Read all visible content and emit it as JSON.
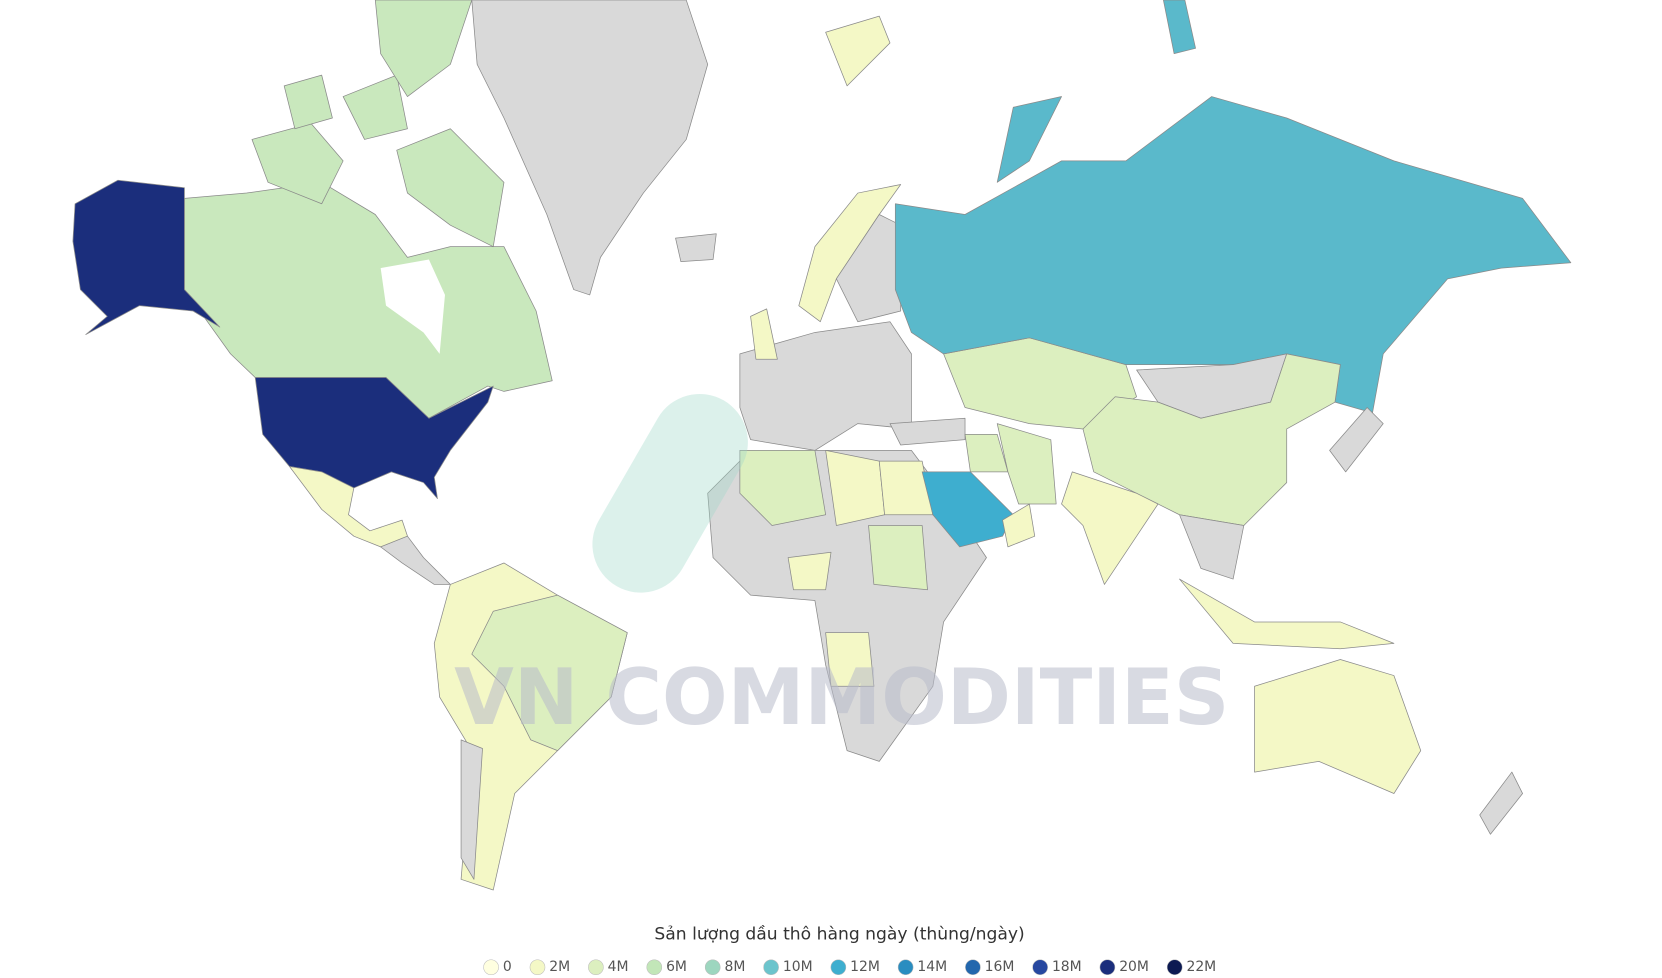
{
  "map": {
    "watermark": "VN COMMODITIES",
    "legend": {
      "title": "Sản lượng dầu thô hàng ngày (thùng/ngày)",
      "ticks": [
        0,
        {
          "value": 2000000,
          "label": "2M"
        },
        {
          "value": 4000000,
          "label": "4M"
        },
        {
          "value": 6000000,
          "label": "6M"
        },
        {
          "value": 8000000,
          "label": "8M"
        },
        {
          "value": 10000000,
          "label": "10M"
        },
        {
          "value": 12000000,
          "label": "12M"
        },
        {
          "value": 14000000,
          "label": "14M"
        },
        {
          "value": 16000000,
          "label": "16M"
        },
        {
          "value": 18000000,
          "label": "18M"
        },
        {
          "value": 20000000,
          "label": "20M"
        },
        {
          "value": 22000000,
          "label": "22M"
        }
      ],
      "colors": [
        "#ffffe0",
        "#f4f8c6",
        "#dcefbf",
        "#c2e6b8",
        "#9dd6bf",
        "#6cc4cc",
        "#3eaecf",
        "#2a8dc0",
        "#2367ad",
        "#2748a0",
        "#1b2e7c",
        "#0c1a52"
      ]
    }
  }
}
